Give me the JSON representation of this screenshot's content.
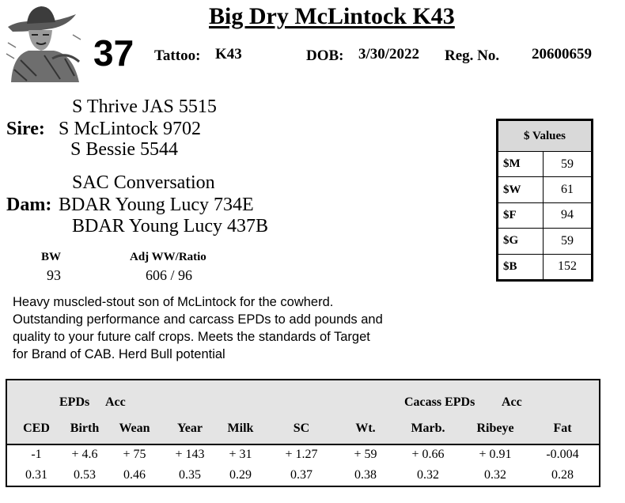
{
  "header": {
    "title": "Big Dry McLintock K43",
    "lot": "37",
    "tattoo_label": "Tattoo:",
    "tattoo": "K43",
    "dob_label": "DOB:",
    "dob": "3/30/2022",
    "reg_label": "Reg. No.",
    "reg": "20600659"
  },
  "pedigree": {
    "sire_label": "Sire:",
    "sire_sire": "S Thrive JAS 5515",
    "sire": "S McLintock 9702",
    "sire_dam": "S Bessie 5544",
    "dam_label": "Dam:",
    "dam_sire": "SAC Conversation",
    "dam": "BDAR Young Lucy 734E",
    "dam_dam": "BDAR Young Lucy 437B"
  },
  "weights": {
    "bw_label": "BW",
    "bw": "93",
    "ww_label": "Adj WW/Ratio",
    "ww": "606 / 96"
  },
  "dollar_values": {
    "title": "$ Values",
    "rows": [
      {
        "label": "$M",
        "value": "59"
      },
      {
        "label": "$W",
        "value": "61"
      },
      {
        "label": "$F",
        "value": "94"
      },
      {
        "label": "$G",
        "value": "59"
      },
      {
        "label": "$B",
        "value": "152"
      }
    ]
  },
  "description": "Heavy muscled-stout son of McLintock for the cowherd. Outstanding performance and carcass EPDs to add pounds and quality to your future calf crops.  Meets the standards of Target for Brand of CAB.  Herd Bull potential",
  "epd": {
    "group_left": "EPDs",
    "acc_left": "Acc",
    "group_right": "Cacass EPDs",
    "acc_right": "Acc",
    "columns": [
      "CED",
      "Birth",
      "Wean",
      "Year",
      "Milk",
      "SC",
      "Wt.",
      "Marb.",
      "Ribeye",
      "Fat"
    ],
    "epds": [
      "-1",
      "+ 4.6",
      "+ 75",
      "+ 143",
      "+ 31",
      "+ 1.27",
      "+ 59",
      "+ 0.66",
      "+ 0.91",
      "-0.004"
    ],
    "acc": [
      "0.31",
      "0.53",
      "0.46",
      "0.35",
      "0.29",
      "0.37",
      "0.38",
      "0.32",
      "0.32",
      "0.28"
    ]
  },
  "logo": {
    "icon": "cowboy-sketch-icon"
  }
}
